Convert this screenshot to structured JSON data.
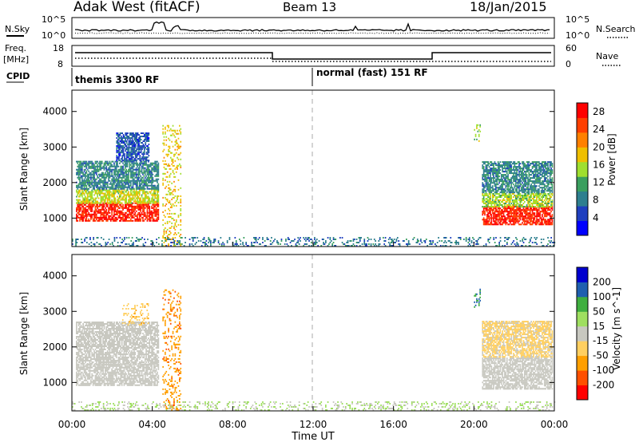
{
  "header": {
    "station": "Adak West (fitACF)",
    "beam": "Beam 13",
    "date": "18/Jan/2015"
  },
  "summary_panels": {
    "nsky_label": "N.Sky",
    "nsearch_label": "N.Search",
    "noise_ticks": [
      "10^5",
      "10^0"
    ],
    "freq_label": "Freq.",
    "freq_units": "[MHz]",
    "freq_ticks": [
      "18",
      "8"
    ],
    "nave_label": "Nave",
    "nave_ticks": [
      "60",
      "0"
    ],
    "cpid_label": "CPID",
    "cpid_segments": [
      "themis 3300 RF",
      "normal (fast) 151 RF"
    ]
  },
  "x_axis": {
    "label": "Time UT",
    "ticks": [
      "00:00",
      "04:00",
      "08:00",
      "12:00",
      "16:00",
      "20:00",
      "00:00"
    ]
  },
  "y_axis_label": "Slant Range [km]",
  "colors": {
    "power_scale": [
      "#0000ff",
      "#1f3fbf",
      "#2e7f8f",
      "#3a9f5f",
      "#9fdf2f",
      "#efbf00",
      "#ff8000",
      "#ff3f00",
      "#ff0000"
    ],
    "velocity_scale": [
      "#ff0000",
      "#ff5000",
      "#ff9f00",
      "#ffcf60",
      "#c8c8c0",
      "#9fdf60",
      "#3faf3f",
      "#1f5faf",
      "#0000cf"
    ],
    "ground_scatter": "#c8c8c0"
  },
  "chart_data": [
    {
      "type": "heatmap",
      "title": "Power",
      "ylabel": "Slant Range [km]",
      "xlabel": "Time UT",
      "x_range_hours": [
        0,
        24
      ],
      "ylim": [
        200,
        4600
      ],
      "yticks": [
        1000,
        2000,
        3000,
        4000
      ],
      "colorbar": {
        "label": "Power [dB]",
        "ticks": [
          4,
          8,
          12,
          16,
          20,
          24,
          28
        ],
        "range": [
          0,
          30
        ]
      },
      "scatter_regions": [
        {
          "t": [
            0.2,
            4.3
          ],
          "range_km": [
            900,
            1400
          ],
          "power_db": 27
        },
        {
          "t": [
            0.2,
            4.3
          ],
          "range_km": [
            1400,
            1800
          ],
          "power_db": 16
        },
        {
          "t": [
            0.2,
            4.3
          ],
          "range_km": [
            1800,
            2600
          ],
          "power_db": 9
        },
        {
          "t": [
            2.2,
            3.8
          ],
          "range_km": [
            2600,
            3400
          ],
          "power_db": 6
        },
        {
          "t": [
            20.4,
            23.9
          ],
          "range_km": [
            800,
            1300
          ],
          "power_db": 27
        },
        {
          "t": [
            20.4,
            23.9
          ],
          "range_km": [
            1300,
            1700
          ],
          "power_db": 15
        },
        {
          "t": [
            20.4,
            23.9
          ],
          "range_km": [
            1700,
            2600
          ],
          "power_db": 9
        },
        {
          "t": [
            20.0,
            20.3
          ],
          "range_km": [
            3100,
            3600
          ],
          "power_db": 14
        },
        {
          "t": [
            4.5,
            5.4
          ],
          "range_km": [
            200,
            3600
          ],
          "power_db": 18
        },
        {
          "t": [
            0.0,
            24.0
          ],
          "range_km": [
            200,
            450
          ],
          "power_db": 8
        }
      ]
    },
    {
      "type": "heatmap",
      "title": "Velocity",
      "ylabel": "Slant Range [km]",
      "xlabel": "Time UT",
      "x_range_hours": [
        0,
        24
      ],
      "ylim": [
        200,
        4600
      ],
      "yticks": [
        1000,
        2000,
        3000,
        4000
      ],
      "colorbar": {
        "label": "Velocity [m s^-1]",
        "ticks": [
          200,
          100,
          50,
          15,
          -15,
          -50,
          -100,
          -200
        ],
        "range": [
          -250,
          250
        ]
      },
      "scatter_regions": [
        {
          "t": [
            0.2,
            4.3
          ],
          "range_km": [
            900,
            1500
          ],
          "velocity": 0,
          "ground_scatter": true
        },
        {
          "t": [
            0.2,
            4.3
          ],
          "range_km": [
            1500,
            2700
          ],
          "velocity": 0,
          "ground_scatter": true
        },
        {
          "t": [
            2.5,
            3.8
          ],
          "range_km": [
            2600,
            3200
          ],
          "velocity": -60
        },
        {
          "t": [
            20.4,
            23.9
          ],
          "range_km": [
            800,
            1700
          ],
          "velocity": 0,
          "ground_scatter": true
        },
        {
          "t": [
            20.4,
            23.9
          ],
          "range_km": [
            1700,
            2700
          ],
          "velocity": -40
        },
        {
          "t": [
            20.0,
            20.3
          ],
          "range_km": [
            3100,
            3600
          ],
          "velocity": 150
        },
        {
          "t": [
            4.5,
            5.4
          ],
          "range_km": [
            200,
            3600
          ],
          "velocity": -120
        },
        {
          "t": [
            0.0,
            24.0
          ],
          "range_km": [
            200,
            450
          ],
          "velocity": 30
        }
      ]
    }
  ]
}
